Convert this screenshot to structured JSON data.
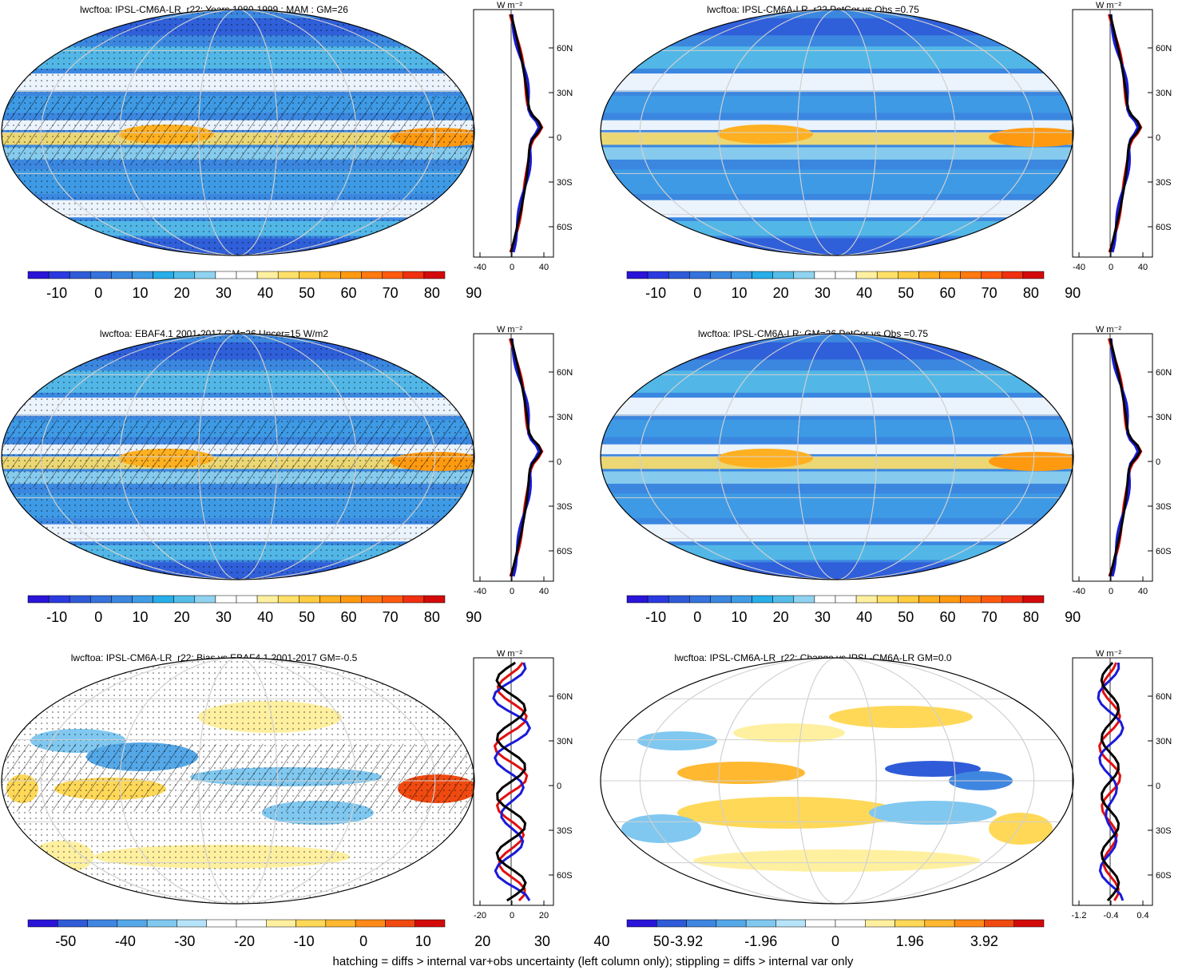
{
  "colors": {
    "ramp": [
      "#2a14d8",
      "#2b3ae0",
      "#2f5bd8",
      "#3673dc",
      "#3b87e0",
      "#3f9ce6",
      "#28aee8",
      "#55bde8",
      "#8fd3f0",
      "#ffffff",
      "#ffffff",
      "#fff0a0",
      "#ffe068",
      "#ffcc40",
      "#ffb020",
      "#ff9a10",
      "#ff7a10",
      "#ff5a10",
      "#f03010",
      "#d40a0a"
    ],
    "diverging": [
      "#2a14d8",
      "#2f5bd8",
      "#3f86e0",
      "#55a8e8",
      "#80c8f0",
      "#b5e3f8",
      "#ffffff",
      "#ffffff",
      "#fff0a0",
      "#ffd858",
      "#ffb830",
      "#ff8a18",
      "#f04a10",
      "#d40a0a"
    ],
    "model_line": "#e01010",
    "obs_line": "#1a1ad8",
    "ref_line": "#000000",
    "grid": "#d0d0d0"
  },
  "panels": [
    {
      "title": "lwcftoa: IPSL-CM6A-LR_r22: Years 1980-1999 : MAM : GM=26",
      "colorbar_labels": [
        "-10",
        "0",
        "10",
        "20",
        "30",
        "40",
        "50",
        "60",
        "70",
        "80",
        "90"
      ],
      "zonal_unit": "W m⁻²",
      "zonal_x_ticks": [
        "-40",
        "0",
        "40"
      ],
      "zonal_lat_ticks": [
        "60N",
        "30N",
        "0",
        "30S",
        "60S"
      ]
    },
    {
      "title": "lwcftoa: IPSL-CM6A-LR_r22 PatCor vs Obs =0.75",
      "colorbar_labels": [
        "-10",
        "0",
        "10",
        "20",
        "30",
        "40",
        "50",
        "60",
        "70",
        "80",
        "90"
      ],
      "zonal_unit": "W m⁻²",
      "zonal_x_ticks": [
        "-40",
        "0",
        "40"
      ],
      "zonal_lat_ticks": [
        "60N",
        "30N",
        "0",
        "30S",
        "60S"
      ]
    },
    {
      "title": "lwcftoa: EBAF4.1 2001-2017 GM=26 Uncer=15 W/m2",
      "colorbar_labels": [
        "-10",
        "0",
        "10",
        "20",
        "30",
        "40",
        "50",
        "60",
        "70",
        "80",
        "90"
      ],
      "zonal_unit": "W m⁻²",
      "zonal_x_ticks": [
        "-40",
        "0",
        "40"
      ],
      "zonal_lat_ticks": [
        "60N",
        "30N",
        "0",
        "30S",
        "60S"
      ]
    },
    {
      "title": "lwcftoa: IPSL-CM6A-LR: GM=26 PatCor vs Obs =0.75",
      "colorbar_labels": [
        "-10",
        "0",
        "10",
        "20",
        "30",
        "40",
        "50",
        "60",
        "70",
        "80",
        "90"
      ],
      "zonal_unit": "W m⁻²",
      "zonal_x_ticks": [
        "-40",
        "0",
        "40"
      ],
      "zonal_lat_ticks": [
        "60N",
        "30N",
        "0",
        "30S",
        "60S"
      ]
    },
    {
      "title": "lwcftoa: IPSL-CM6A-LR_r22: Bias vs EBAF4.1 2001-2017 GM=-0.5",
      "colorbar_labels": [
        "-50",
        "-40",
        "-30",
        "-20",
        "-10",
        "0",
        "10",
        "20",
        "30",
        "40",
        "50"
      ],
      "zonal_unit": "W m⁻²",
      "zonal_x_ticks": [
        "-20",
        "0",
        "20"
      ],
      "zonal_lat_ticks": [
        "60N",
        "30N",
        "0",
        "30S",
        "60S"
      ]
    },
    {
      "title": "lwcftoa: IPSL-CM6A-LR_r22: Change vs IPSL-CM6A-LR GM=0.0",
      "colorbar_labels": [
        "-3.92",
        "-1.96",
        "0",
        "1.96",
        "3.92"
      ],
      "zonal_unit": "W m⁻²",
      "zonal_x_ticks": [
        "-1.2",
        "-0.4",
        "0.4"
      ],
      "zonal_lat_ticks": [
        "60N",
        "30N",
        "0",
        "30S",
        "60S"
      ]
    }
  ],
  "footer": "hatching = diffs > internal var+obs uncertainty (left column only); stippling = diffs > internal var only"
}
